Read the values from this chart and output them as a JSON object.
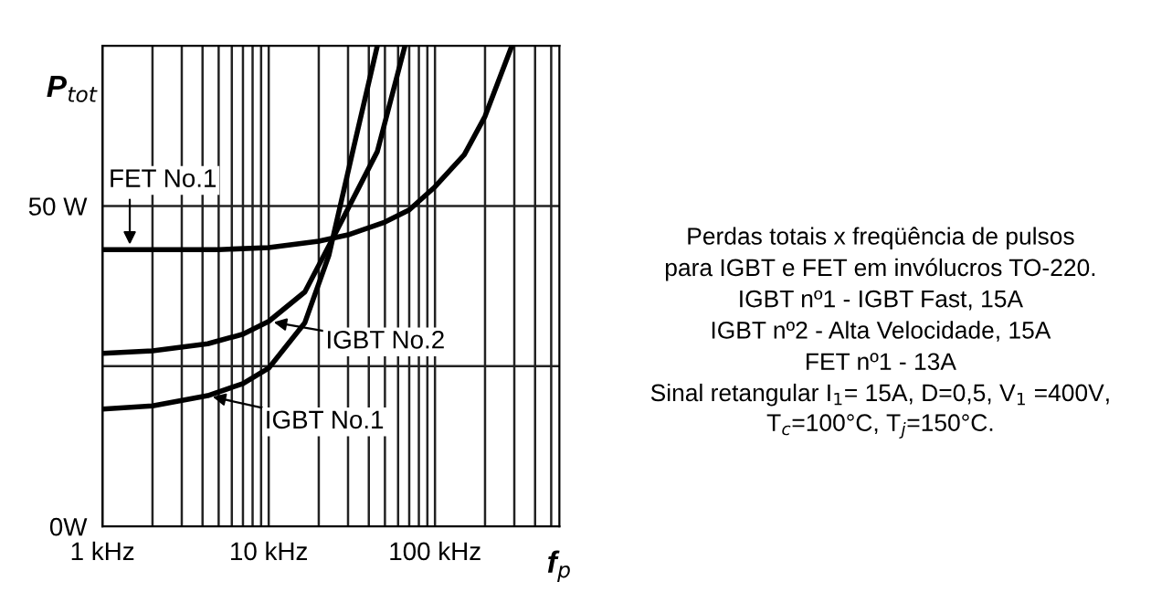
{
  "chart_data": {
    "type": "line",
    "xlabel": "f$_{p}$",
    "ylabel": "P$_{tot}$",
    "log": "x",
    "xlim": [
      1,
      560
    ],
    "ylim": [
      0,
      75
    ],
    "xticks": [
      {
        "value": 1,
        "label": "1 kHz"
      },
      {
        "value": 2,
        "label": null
      },
      {
        "value": 3,
        "label": null
      },
      {
        "value": 4,
        "label": null
      },
      {
        "value": 5,
        "label": null
      },
      {
        "value": 6,
        "label": null
      },
      {
        "value": 7,
        "label": null
      },
      {
        "value": 8,
        "label": null
      },
      {
        "value": 9,
        "label": null
      },
      {
        "value": 10,
        "label": "10 kHz"
      },
      {
        "value": 20,
        "label": null
      },
      {
        "value": 30,
        "label": null
      },
      {
        "value": 40,
        "label": null
      },
      {
        "value": 50,
        "label": null
      },
      {
        "value": 60,
        "label": null
      },
      {
        "value": 70,
        "label": null
      },
      {
        "value": 80,
        "label": null
      },
      {
        "value": 90,
        "label": null
      },
      {
        "value": 100,
        "label": "100 kHz"
      },
      {
        "value": 200,
        "label": null
      },
      {
        "value": 300,
        "label": null
      },
      {
        "value": 400,
        "label": null
      },
      {
        "value": 500,
        "label": null
      }
    ],
    "yticks": [
      {
        "value": 0,
        "label": "0W"
      },
      {
        "value": 25,
        "label": null
      },
      {
        "value": 50,
        "label": "50 W"
      }
    ],
    "grid": true,
    "marker": "none",
    "line_style": "solid",
    "series": [
      {
        "color": "#000000",
        "x": [
          1,
          5,
          10,
          20,
          30,
          50,
          70,
          100,
          150,
          200,
          290
        ],
        "values": [
          43.2,
          43.2,
          43.5,
          44.5,
          45.5,
          47.5,
          49.4,
          53,
          58,
          64,
          75
        ]
      },
      {
        "color": "#000000",
        "x": [
          1,
          2,
          4.3,
          7,
          10,
          16.5,
          23,
          32,
          45
        ],
        "values": [
          18.3,
          18.8,
          20.4,
          22.3,
          24.7,
          31.8,
          42.3,
          58.5,
          75
        ]
      },
      {
        "color": "#000000",
        "x": [
          1,
          2,
          4.3,
          7,
          10,
          16.5,
          24,
          45,
          66
        ],
        "values": [
          27,
          27.4,
          28.5,
          30,
          32,
          36.6,
          44.7,
          58.5,
          75
        ]
      }
    ],
    "annotations": [
      {
        "text": "FET No.1",
        "x": 1.46,
        "y": 43.2
      },
      {
        "text": "IGBT No.2",
        "x": 10,
        "y": 32
      },
      {
        "text": "IGBT No.1",
        "x": 4.3,
        "y": 20.4
      },
      "Perdas totais x freqüência de pulsos",
      "para IGBT e FET em invólucros TO-220.",
      "IGBT nº1 - IGBT Fast, 15A",
      "IGBT nº2 - Alta Velocidade, 15A",
      "FET nº1 - 13A",
      "Sinal retangular I$_{1}$= 15A, D=0,5, V$_{1}$ =400V,",
      "T$_{c}$=100°C, T$_{j}$=150°C."
    ]
  }
}
